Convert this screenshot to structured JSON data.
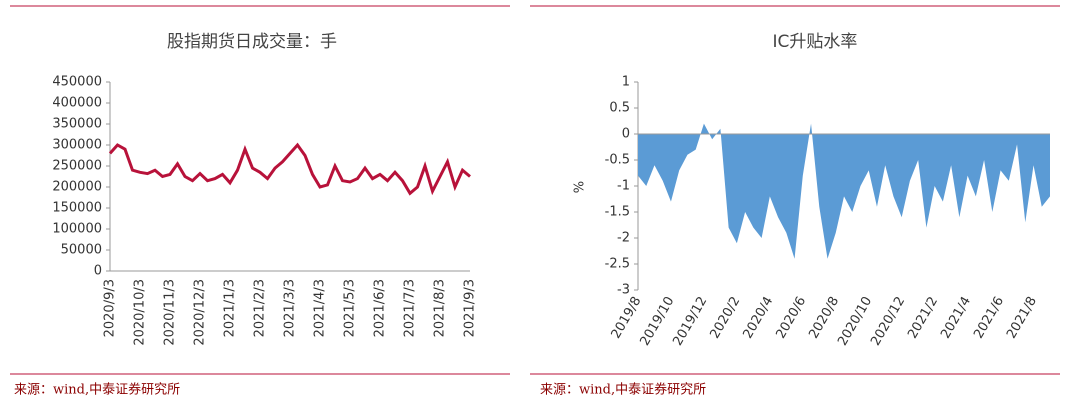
{
  "chart_data": [
    {
      "type": "line",
      "title": "股指期货日成交量：手",
      "source": "来源：wind,中泰证券研究所",
      "categories": [
        "2020/9/3",
        null,
        null,
        null,
        "2020/10/3",
        null,
        null,
        null,
        "2020/11/3",
        null,
        null,
        null,
        "2020/12/3",
        null,
        null,
        null,
        "2021/1/3",
        null,
        null,
        null,
        "2021/2/3",
        null,
        null,
        null,
        "2021/3/3",
        null,
        null,
        null,
        "2021/4/3",
        null,
        null,
        null,
        "2021/5/3",
        null,
        null,
        null,
        "2021/6/3",
        null,
        null,
        null,
        "2021/7/3",
        null,
        null,
        null,
        "2021/8/3",
        null,
        null,
        null,
        "2021/9/3"
      ],
      "series": [
        {
          "name": "成交量",
          "color": "#b8123a",
          "values": [
            280000,
            300000,
            290000,
            240000,
            235000,
            232000,
            240000,
            225000,
            230000,
            255000,
            225000,
            215000,
            232000,
            215000,
            220000,
            230000,
            210000,
            240000,
            290000,
            245000,
            235000,
            220000,
            245000,
            260000,
            280000,
            300000,
            275000,
            230000,
            200000,
            205000,
            250000,
            215000,
            212000,
            220000,
            245000,
            220000,
            230000,
            215000,
            235000,
            215000,
            185000,
            200000,
            250000,
            190000,
            225000,
            260000,
            200000,
            240000,
            225000
          ]
        }
      ],
      "ylim": [
        0,
        450000
      ],
      "yticks": [
        0,
        50000,
        100000,
        150000,
        200000,
        250000,
        300000,
        350000,
        400000,
        450000
      ]
    },
    {
      "type": "area",
      "title": "IC升贴水率",
      "source": "来源：wind,中泰证券研究所",
      "y_label": "%",
      "categories": [
        "2019/8",
        null,
        null,
        null,
        "2019/10",
        null,
        null,
        null,
        "2019/12",
        null,
        null,
        null,
        "2020/2",
        null,
        null,
        null,
        "2020/4",
        null,
        null,
        null,
        "2020/6",
        null,
        null,
        null,
        "2020/8",
        null,
        null,
        null,
        "2020/10",
        null,
        null,
        null,
        "2020/12",
        null,
        null,
        null,
        "2021/2",
        null,
        null,
        null,
        "2021/4",
        null,
        null,
        null,
        "2021/6",
        null,
        null,
        null,
        "2021/8",
        null,
        null
      ],
      "series": [
        {
          "name": "IC升贴水率",
          "color": "#5b9bd5",
          "values": [
            -0.8,
            -1.0,
            -0.6,
            -0.9,
            -1.3,
            -0.7,
            -0.4,
            -0.3,
            0.2,
            -0.1,
            0.1,
            -1.8,
            -2.1,
            -1.5,
            -1.8,
            -2.0,
            -1.2,
            -1.6,
            -1.9,
            -2.4,
            -0.8,
            0.2,
            -1.4,
            -2.4,
            -1.9,
            -1.2,
            -1.5,
            -1.0,
            -0.7,
            -1.4,
            -0.6,
            -1.2,
            -1.6,
            -0.9,
            -0.5,
            -1.8,
            -1.0,
            -1.3,
            -0.6,
            -1.6,
            -0.8,
            -1.2,
            -0.5,
            -1.5,
            -0.7,
            -0.9,
            -0.2,
            -1.7,
            -0.6,
            -1.4,
            -1.2
          ]
        }
      ],
      "ylim": [
        -3,
        1
      ],
      "yticks": [
        -3,
        -2.5,
        -2,
        -1.5,
        -1,
        -0.5,
        0,
        0.5,
        1
      ]
    }
  ]
}
